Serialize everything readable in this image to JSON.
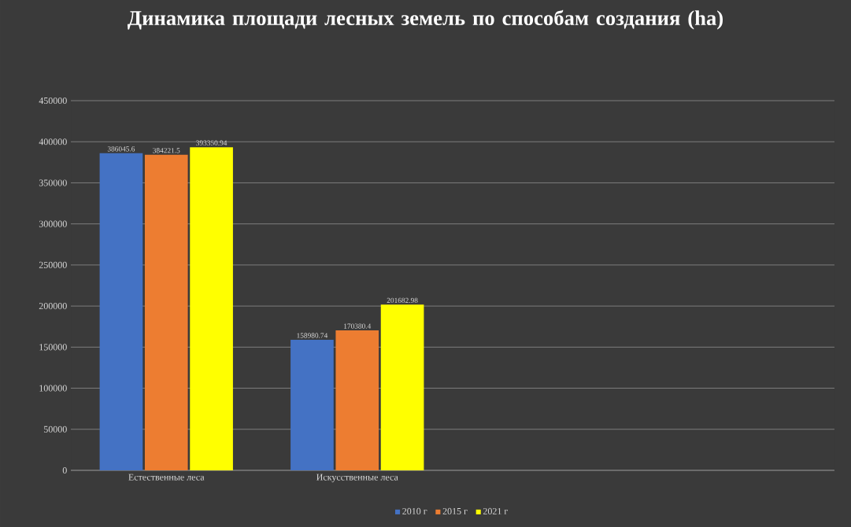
{
  "chart_data": {
    "type": "bar",
    "title": "Динамика площади лесных земель по способам создания (ha)",
    "categories": [
      "Естественные леса",
      "Искусственные леса",
      null,
      null
    ],
    "series": [
      {
        "name": "2010 г",
        "color": "#4472c4",
        "values": [
          386045.6,
          158980.74,
          null,
          null
        ]
      },
      {
        "name": "2015 г",
        "color": "#ed7d31",
        "values": [
          384221.5,
          170380.4,
          null,
          null
        ]
      },
      {
        "name": "2021 г",
        "color": "#ffff00",
        "values": [
          393350.94,
          201682.98,
          null,
          null
        ]
      }
    ],
    "ylim": [
      0,
      450000
    ],
    "yticks": [
      0,
      50000,
      100000,
      150000,
      200000,
      250000,
      300000,
      350000,
      400000,
      450000
    ],
    "grid": "y",
    "legend": "bottom",
    "data_labels": true
  }
}
